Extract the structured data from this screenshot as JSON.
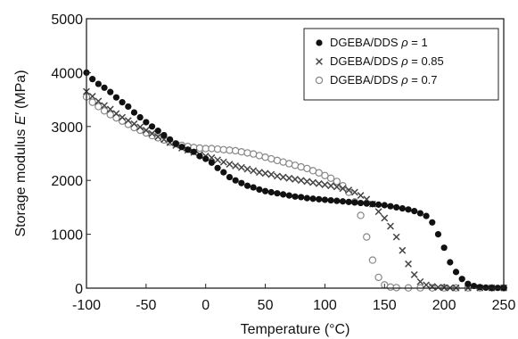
{
  "chart_data": {
    "type": "scatter",
    "xlabel": "Temperature (°C)",
    "ylabel": "Storage modulus E′ (MPa)",
    "xlim": [
      -100,
      250
    ],
    "ylim": [
      0,
      5000
    ],
    "x_ticks": [
      -100,
      -50,
      0,
      50,
      100,
      150,
      200,
      250
    ],
    "y_ticks": [
      0,
      1000,
      2000,
      3000,
      4000,
      5000
    ],
    "grid": false,
    "legend_position": "top-right",
    "series": [
      {
        "name": "DGEBA/DDS ρ = 1",
        "label_prefix": "DGEBA/DDS ",
        "label_symbol": "ρ",
        "label_suffix": " = 1",
        "marker": "filled-circle",
        "color": "#111111",
        "points": [
          [
            -100,
            4000
          ],
          [
            -95,
            3880
          ],
          [
            -90,
            3790
          ],
          [
            -85,
            3720
          ],
          [
            -80,
            3640
          ],
          [
            -75,
            3540
          ],
          [
            -70,
            3450
          ],
          [
            -65,
            3370
          ],
          [
            -60,
            3260
          ],
          [
            -55,
            3170
          ],
          [
            -50,
            3080
          ],
          [
            -45,
            3000
          ],
          [
            -40,
            2920
          ],
          [
            -35,
            2840
          ],
          [
            -30,
            2760
          ],
          [
            -25,
            2680
          ],
          [
            -20,
            2620
          ],
          [
            -15,
            2570
          ],
          [
            -10,
            2530
          ],
          [
            -5,
            2450
          ],
          [
            0,
            2400
          ],
          [
            5,
            2330
          ],
          [
            10,
            2230
          ],
          [
            15,
            2150
          ],
          [
            20,
            2060
          ],
          [
            25,
            2000
          ],
          [
            30,
            1950
          ],
          [
            35,
            1900
          ],
          [
            40,
            1870
          ],
          [
            45,
            1830
          ],
          [
            50,
            1800
          ],
          [
            55,
            1780
          ],
          [
            60,
            1760
          ],
          [
            65,
            1740
          ],
          [
            70,
            1720
          ],
          [
            75,
            1700
          ],
          [
            80,
            1690
          ],
          [
            85,
            1670
          ],
          [
            90,
            1660
          ],
          [
            95,
            1650
          ],
          [
            100,
            1640
          ],
          [
            105,
            1630
          ],
          [
            110,
            1620
          ],
          [
            115,
            1610
          ],
          [
            120,
            1600
          ],
          [
            125,
            1590
          ],
          [
            130,
            1580
          ],
          [
            135,
            1570
          ],
          [
            140,
            1560
          ],
          [
            145,
            1550
          ],
          [
            150,
            1540
          ],
          [
            155,
            1520
          ],
          [
            160,
            1500
          ],
          [
            165,
            1480
          ],
          [
            170,
            1460
          ],
          [
            175,
            1430
          ],
          [
            180,
            1390
          ],
          [
            185,
            1340
          ],
          [
            190,
            1220
          ],
          [
            195,
            1000
          ],
          [
            200,
            750
          ],
          [
            205,
            480
          ],
          [
            210,
            300
          ],
          [
            215,
            170
          ],
          [
            220,
            80
          ],
          [
            225,
            40
          ],
          [
            230,
            20
          ],
          [
            235,
            10
          ],
          [
            240,
            5
          ],
          [
            245,
            5
          ],
          [
            250,
            5
          ]
        ]
      },
      {
        "name": "DGEBA/DDS ρ = 0.85",
        "label_prefix": "DGEBA/DDS ",
        "label_symbol": "ρ",
        "label_suffix": " = 0.85",
        "marker": "cross",
        "color": "#444444",
        "points": [
          [
            -100,
            3650
          ],
          [
            -95,
            3560
          ],
          [
            -90,
            3470
          ],
          [
            -85,
            3390
          ],
          [
            -80,
            3320
          ],
          [
            -75,
            3240
          ],
          [
            -70,
            3170
          ],
          [
            -65,
            3110
          ],
          [
            -60,
            3050
          ],
          [
            -55,
            2990
          ],
          [
            -50,
            2930
          ],
          [
            -45,
            2870
          ],
          [
            -40,
            2810
          ],
          [
            -35,
            2760
          ],
          [
            -30,
            2700
          ],
          [
            -25,
            2650
          ],
          [
            -20,
            2600
          ],
          [
            -15,
            2560
          ],
          [
            -10,
            2520
          ],
          [
            -5,
            2480
          ],
          [
            0,
            2450
          ],
          [
            5,
            2420
          ],
          [
            10,
            2380
          ],
          [
            15,
            2340
          ],
          [
            20,
            2300
          ],
          [
            25,
            2270
          ],
          [
            30,
            2240
          ],
          [
            35,
            2210
          ],
          [
            40,
            2180
          ],
          [
            45,
            2150
          ],
          [
            50,
            2130
          ],
          [
            55,
            2110
          ],
          [
            60,
            2080
          ],
          [
            65,
            2060
          ],
          [
            70,
            2040
          ],
          [
            75,
            2020
          ],
          [
            80,
            2000
          ],
          [
            85,
            1980
          ],
          [
            90,
            1960
          ],
          [
            95,
            1940
          ],
          [
            100,
            1920
          ],
          [
            105,
            1900
          ],
          [
            110,
            1880
          ],
          [
            115,
            1850
          ],
          [
            120,
            1820
          ],
          [
            125,
            1780
          ],
          [
            130,
            1720
          ],
          [
            135,
            1650
          ],
          [
            140,
            1560
          ],
          [
            145,
            1420
          ],
          [
            150,
            1300
          ],
          [
            155,
            1150
          ],
          [
            160,
            950
          ],
          [
            165,
            700
          ],
          [
            170,
            450
          ],
          [
            175,
            250
          ],
          [
            180,
            120
          ],
          [
            185,
            60
          ],
          [
            190,
            30
          ],
          [
            195,
            15
          ],
          [
            200,
            10
          ],
          [
            205,
            5
          ],
          [
            210,
            5
          ],
          [
            220,
            5
          ],
          [
            230,
            5
          ],
          [
            240,
            5
          ],
          [
            250,
            5
          ]
        ]
      },
      {
        "name": "DGEBA/DDS ρ = 0.7",
        "label_prefix": "DGEBA/DDS ",
        "label_symbol": "ρ",
        "label_suffix": " = 0.7",
        "marker": "open-circle",
        "color": "#888888",
        "points": [
          [
            -100,
            3550
          ],
          [
            -95,
            3450
          ],
          [
            -90,
            3370
          ],
          [
            -85,
            3290
          ],
          [
            -80,
            3220
          ],
          [
            -75,
            3160
          ],
          [
            -70,
            3100
          ],
          [
            -65,
            3040
          ],
          [
            -60,
            2980
          ],
          [
            -55,
            2930
          ],
          [
            -50,
            2880
          ],
          [
            -45,
            2830
          ],
          [
            -40,
            2790
          ],
          [
            -35,
            2750
          ],
          [
            -30,
            2710
          ],
          [
            -25,
            2680
          ],
          [
            -20,
            2650
          ],
          [
            -15,
            2630
          ],
          [
            -10,
            2610
          ],
          [
            -5,
            2600
          ],
          [
            0,
            2590
          ],
          [
            5,
            2590
          ],
          [
            10,
            2580
          ],
          [
            15,
            2570
          ],
          [
            20,
            2560
          ],
          [
            25,
            2550
          ],
          [
            30,
            2530
          ],
          [
            35,
            2510
          ],
          [
            40,
            2490
          ],
          [
            45,
            2460
          ],
          [
            50,
            2430
          ],
          [
            55,
            2400
          ],
          [
            60,
            2370
          ],
          [
            65,
            2340
          ],
          [
            70,
            2310
          ],
          [
            75,
            2280
          ],
          [
            80,
            2250
          ],
          [
            85,
            2220
          ],
          [
            90,
            2180
          ],
          [
            95,
            2140
          ],
          [
            100,
            2090
          ],
          [
            105,
            2040
          ],
          [
            110,
            1980
          ],
          [
            115,
            1900
          ],
          [
            120,
            1780
          ],
          [
            125,
            1600
          ],
          [
            130,
            1350
          ],
          [
            135,
            950
          ],
          [
            140,
            520
          ],
          [
            145,
            200
          ],
          [
            150,
            60
          ],
          [
            155,
            20
          ],
          [
            160,
            10
          ],
          [
            170,
            5
          ],
          [
            180,
            5
          ],
          [
            190,
            5
          ],
          [
            200,
            5
          ],
          [
            210,
            5
          ],
          [
            220,
            5
          ],
          [
            230,
            5
          ],
          [
            240,
            5
          ],
          [
            250,
            5
          ]
        ]
      }
    ]
  }
}
